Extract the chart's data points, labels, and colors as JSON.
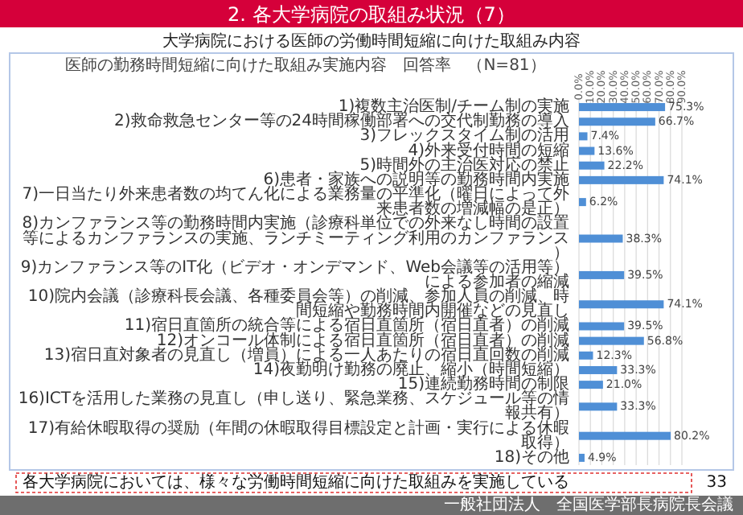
{
  "chart_data": {
    "type": "bar",
    "orientation": "horizontal",
    "title": "2. 各大学病院の取組み状況（7）",
    "subtitle": "大学病院における医師の労働時間短縮に向けた取組み内容",
    "categories": [
      "1)複数主治医制/チーム制の実施",
      "2)救命救急センター等の24時間稼働部署への交代制勤務の導入",
      "3)フレックスタイム制の活用",
      "4)外来受付時間の短縮",
      "5)時間外の主治医対応の禁止",
      "6)患者・家族への説明等の勤務時間内実施",
      "7)一日当たり外来患者数の均てん化による業務量の平準化（曜日によって外来患者数の増減幅の是正）",
      "8)カンファランス等の勤務時間内実施（診療科単位での外来なし時間の設置等によるカンファランスの実施、ランチミーティング利用のカンファランス）",
      "9)カンファランス等のIT化（ビデオ・オンデマンド、Web会議等の活用等）による参加者の縮減",
      "10)院内会議（診療科長会議、各種委員会等）の削減、参加人員の削減、時間短縮や勤務時間内開催などの見直し",
      "11)宿日直箇所の統合等による宿日直箇所（宿日直者）の削減",
      "12)オンコール体制による宿日直箇所（宿日直者）の削減",
      "13)宿日直対象者の見直し（増員）による一人あたりの宿日直回数の削減",
      "14)夜勤明け勤務の廃止、縮小（時間短縮）",
      "15)連続勤務時間の制限",
      "16)ICTを活用した業務の見直し（申し送り、緊急業務、スケジュール等の情報共有）",
      "17)有給休暇取得の奨励（年間の休暇取得目標設定と計画・実行による休暇取得）",
      "18)その他"
    ],
    "values": [
      75.3,
      66.7,
      7.4,
      13.6,
      22.2,
      74.1,
      6.2,
      38.3,
      39.5,
      74.1,
      39.5,
      56.8,
      12.3,
      33.3,
      21.0,
      33.3,
      80.2,
      4.9
    ],
    "value_labels": [
      "75.3%",
      "66.7%",
      "7.4%",
      "13.6%",
      "22.2%",
      "74.1%",
      "6.2%",
      "38.3%",
      "39.5%",
      "74.1%",
      "39.5%",
      "56.8%",
      "12.3%",
      "33.3%",
      "21.0%",
      "33.3%",
      "80.2%",
      "4.9%"
    ],
    "color": "#4f8fd6",
    "xlim": [
      0,
      90
    ],
    "xticks": [
      {
        "value": 0,
        "label": "0.0%"
      },
      {
        "value": 10,
        "label": "10.0%"
      },
      {
        "value": 20,
        "label": "20.0%"
      },
      {
        "value": 30,
        "label": "30.0%"
      },
      {
        "value": 40,
        "label": "40.0%"
      },
      {
        "value": 50,
        "label": "50.0%"
      },
      {
        "value": 60,
        "label": "60.0%"
      },
      {
        "value": 70,
        "label": "70.0%"
      },
      {
        "value": 80,
        "label": "80.0%"
      },
      {
        "value": 90,
        "label": "90.0%"
      }
    ],
    "grid": "x",
    "annotations": [
      "医師の勤務時間短縮に向けた取組み実施内容　回答率　（N=81）",
      "各大学病院においては、様々な労働時間短縮に向けた取組みを実施している",
      "33",
      "一般社団法人　全国医学部長病院長会議"
    ]
  }
}
